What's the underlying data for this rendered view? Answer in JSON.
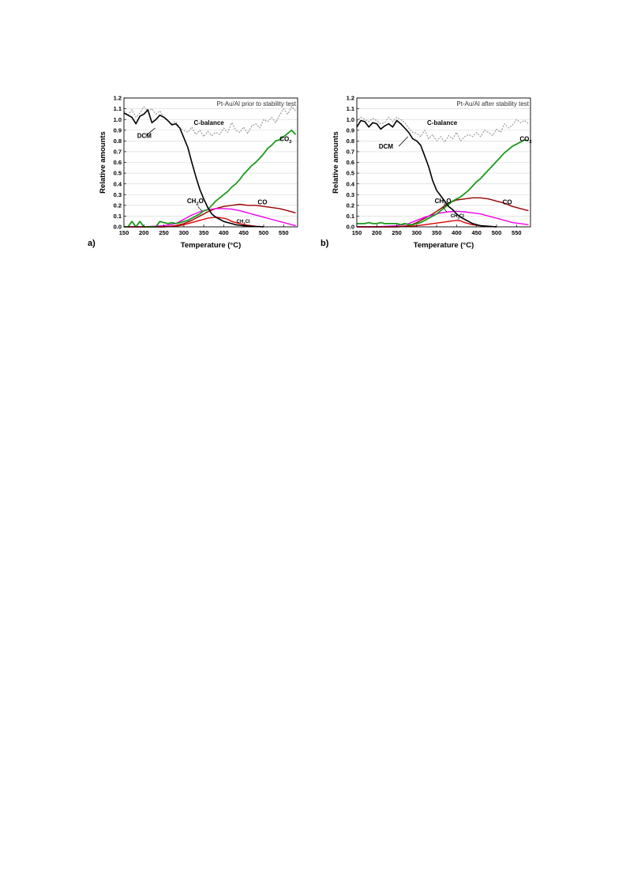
{
  "panels": [
    {
      "letter": "a)",
      "title": "Pt-Au/Al prior to stability test",
      "xlabel": "Temperature (°C)",
      "ylabel": "Relative amounts",
      "series_labels": {
        "dcm": "DCM",
        "cbalance": "C-balance",
        "co2": "CO2",
        "co": "CO",
        "ch2o": "CH2O",
        "ch3cl": "CH3Cl"
      }
    },
    {
      "letter": "b)",
      "title": "Pt-Au/Al after stability test",
      "xlabel": "Temperature (°C)",
      "ylabel": "Relative amounts",
      "series_labels": {
        "dcm": "DCM",
        "cbalance": "C-balance",
        "co2": "CO2",
        "co": "CO",
        "ch2o": "CH2O",
        "ch3cl": "CH3Cl"
      }
    }
  ],
  "colors": {
    "dcm": "#000000",
    "cbalance": "#9a9a9a",
    "co2": "#1a9a1a",
    "co": "#9a0000",
    "ch2o": "#ee00ee",
    "ch3cl": "#dd0000"
  },
  "chart_data": [
    {
      "type": "line",
      "title": "Pt-Au/Al prior to stability test",
      "xlabel": "Temperature (°C)",
      "ylabel": "Relative amounts",
      "xlim": [
        150,
        585
      ],
      "ylim": [
        0,
        1.2
      ],
      "xticks": [
        150,
        200,
        250,
        300,
        350,
        400,
        450,
        500,
        550
      ],
      "yticks": [
        0.0,
        0.1,
        0.2,
        0.3,
        0.4,
        0.5,
        0.6,
        0.7,
        0.8,
        0.9,
        1.0,
        1.1,
        1.2
      ],
      "grid": true,
      "series": [
        {
          "name": "DCM",
          "key": "dcm",
          "x": [
            150,
            160,
            170,
            180,
            190,
            200,
            210,
            220,
            230,
            240,
            250,
            260,
            270,
            280,
            290,
            300,
            310,
            320,
            330,
            340,
            350,
            360,
            370,
            380,
            390,
            400,
            410,
            420,
            430,
            440,
            450,
            460,
            470,
            480,
            490,
            500
          ],
          "y": [
            1.06,
            1.04,
            1.02,
            0.96,
            1.03,
            1.05,
            1.09,
            0.97,
            1.0,
            1.04,
            1.02,
            0.99,
            0.95,
            0.96,
            0.92,
            0.83,
            0.74,
            0.6,
            0.47,
            0.35,
            0.26,
            0.18,
            0.12,
            0.09,
            0.07,
            0.05,
            0.04,
            0.03,
            0.02,
            0.015,
            0.01,
            0.008,
            0.005,
            0.003,
            0.002,
            0.0
          ]
        },
        {
          "name": "C-balance",
          "key": "cbalance",
          "x": [
            150,
            160,
            170,
            180,
            190,
            200,
            210,
            220,
            230,
            240,
            250,
            260,
            270,
            280,
            290,
            300,
            310,
            320,
            330,
            340,
            350,
            360,
            370,
            380,
            390,
            400,
            410,
            420,
            430,
            440,
            450,
            460,
            470,
            480,
            490,
            500,
            510,
            520,
            530,
            540,
            550,
            560,
            570,
            580
          ],
          "y": [
            1.08,
            1.04,
            1.09,
            1.02,
            1.06,
            1.12,
            1.08,
            1.1,
            1.05,
            1.08,
            1.02,
            0.99,
            0.96,
            0.98,
            0.92,
            0.9,
            0.88,
            0.93,
            0.86,
            0.9,
            0.84,
            0.89,
            0.85,
            0.88,
            0.86,
            0.92,
            0.88,
            0.97,
            0.9,
            0.88,
            0.93,
            0.87,
            0.94,
            0.96,
            0.92,
            1.0,
            0.98,
            1.02,
            0.97,
            1.04,
            1.1,
            1.05,
            1.12,
            1.08
          ]
        },
        {
          "name": "CO2",
          "key": "co2",
          "x": [
            150,
            160,
            170,
            180,
            190,
            200,
            210,
            220,
            230,
            240,
            250,
            260,
            270,
            280,
            290,
            300,
            310,
            320,
            330,
            340,
            350,
            360,
            370,
            380,
            390,
            400,
            410,
            420,
            430,
            440,
            450,
            460,
            470,
            480,
            490,
            500,
            510,
            520,
            530,
            540,
            550,
            560,
            570,
            580
          ],
          "y": [
            0.0,
            0.0,
            0.05,
            0.0,
            0.05,
            0.0,
            0.0,
            0.0,
            0.0,
            0.05,
            0.04,
            0.03,
            0.04,
            0.03,
            0.04,
            0.05,
            0.06,
            0.08,
            0.1,
            0.12,
            0.15,
            0.16,
            0.2,
            0.24,
            0.27,
            0.3,
            0.33,
            0.37,
            0.4,
            0.44,
            0.49,
            0.53,
            0.57,
            0.6,
            0.64,
            0.68,
            0.73,
            0.76,
            0.8,
            0.81,
            0.84,
            0.87,
            0.9,
            0.86
          ]
        },
        {
          "name": "CO",
          "key": "co",
          "x": [
            150,
            200,
            250,
            280,
            300,
            320,
            340,
            360,
            380,
            400,
            420,
            440,
            460,
            480,
            500,
            520,
            540,
            560,
            580
          ],
          "y": [
            0.0,
            0.0,
            0.0,
            0.01,
            0.03,
            0.06,
            0.1,
            0.14,
            0.17,
            0.19,
            0.2,
            0.21,
            0.2,
            0.2,
            0.19,
            0.18,
            0.17,
            0.15,
            0.13
          ]
        },
        {
          "name": "CH2O",
          "key": "ch2o",
          "x": [
            150,
            200,
            250,
            280,
            300,
            320,
            340,
            360,
            380,
            400,
            420,
            440,
            460,
            480,
            500,
            520,
            540,
            560,
            580
          ],
          "y": [
            0.0,
            0.0,
            0.01,
            0.03,
            0.07,
            0.11,
            0.14,
            0.16,
            0.17,
            0.17,
            0.165,
            0.15,
            0.13,
            0.11,
            0.09,
            0.07,
            0.05,
            0.03,
            0.01
          ]
        },
        {
          "name": "CH3Cl",
          "key": "ch3cl",
          "x": [
            150,
            200,
            250,
            280,
            300,
            320,
            340,
            360,
            380,
            400,
            410,
            420,
            440,
            460,
            480,
            500
          ],
          "y": [
            0.0,
            0.0,
            0.0,
            0.005,
            0.02,
            0.04,
            0.06,
            0.08,
            0.09,
            0.08,
            0.07,
            0.05,
            0.03,
            0.015,
            0.005,
            0.0
          ]
        }
      ]
    },
    {
      "type": "line",
      "title": "Pt-Au/Al after stability test",
      "xlabel": "Temperature (°C)",
      "ylabel": "Relative amounts",
      "xlim": [
        150,
        585
      ],
      "ylim": [
        0,
        1.2
      ],
      "xticks": [
        150,
        200,
        250,
        300,
        350,
        400,
        450,
        500,
        550
      ],
      "yticks": [
        0.0,
        0.1,
        0.2,
        0.3,
        0.4,
        0.5,
        0.6,
        0.7,
        0.8,
        0.9,
        1.0,
        1.1,
        1.2
      ],
      "grid": true,
      "series": [
        {
          "name": "DCM",
          "key": "dcm",
          "x": [
            150,
            160,
            170,
            180,
            190,
            200,
            210,
            220,
            230,
            240,
            250,
            260,
            270,
            280,
            290,
            300,
            310,
            320,
            330,
            340,
            350,
            360,
            370,
            380,
            390,
            400,
            410,
            420,
            430,
            440,
            450,
            460,
            470,
            480,
            490,
            500
          ],
          "y": [
            0.93,
            0.99,
            0.98,
            0.93,
            0.97,
            0.96,
            0.91,
            0.94,
            0.96,
            0.93,
            0.99,
            0.96,
            0.92,
            0.88,
            0.82,
            0.8,
            0.76,
            0.66,
            0.56,
            0.43,
            0.34,
            0.29,
            0.24,
            0.19,
            0.16,
            0.12,
            0.09,
            0.07,
            0.05,
            0.03,
            0.02,
            0.01,
            0.008,
            0.005,
            0.002,
            0.0
          ]
        },
        {
          "name": "C-balance",
          "key": "cbalance",
          "x": [
            150,
            160,
            170,
            180,
            190,
            200,
            210,
            220,
            230,
            240,
            250,
            260,
            270,
            280,
            290,
            300,
            310,
            320,
            330,
            340,
            350,
            360,
            370,
            380,
            390,
            400,
            410,
            420,
            430,
            440,
            450,
            460,
            470,
            480,
            490,
            500,
            510,
            520,
            530,
            540,
            550,
            560,
            570,
            580
          ],
          "y": [
            0.98,
            1.02,
            1.0,
            0.98,
            1.01,
            0.99,
            0.96,
            0.97,
            1.02,
            0.98,
            1.02,
            1.0,
            0.97,
            0.92,
            0.88,
            0.87,
            0.84,
            0.9,
            0.82,
            0.86,
            0.8,
            0.84,
            0.79,
            0.85,
            0.82,
            0.88,
            0.8,
            0.84,
            0.86,
            0.84,
            0.88,
            0.84,
            0.9,
            0.88,
            0.85,
            0.91,
            0.88,
            0.96,
            0.92,
            0.95,
            1.0,
            0.97,
            0.99,
            0.96
          ]
        },
        {
          "name": "CO2",
          "key": "co2",
          "x": [
            150,
            160,
            170,
            180,
            190,
            200,
            210,
            220,
            230,
            240,
            250,
            260,
            270,
            280,
            290,
            300,
            310,
            320,
            330,
            340,
            350,
            360,
            370,
            380,
            390,
            400,
            410,
            420,
            430,
            440,
            450,
            460,
            470,
            480,
            490,
            500,
            510,
            520,
            530,
            540,
            550,
            560,
            570,
            580
          ],
          "y": [
            0.03,
            0.03,
            0.03,
            0.04,
            0.03,
            0.03,
            0.04,
            0.03,
            0.03,
            0.03,
            0.03,
            0.02,
            0.03,
            0.02,
            0.02,
            0.03,
            0.04,
            0.06,
            0.08,
            0.1,
            0.12,
            0.15,
            0.18,
            0.21,
            0.24,
            0.26,
            0.28,
            0.31,
            0.34,
            0.38,
            0.42,
            0.45,
            0.49,
            0.53,
            0.57,
            0.61,
            0.65,
            0.69,
            0.72,
            0.75,
            0.77,
            0.79,
            0.81,
            0.8
          ]
        },
        {
          "name": "CO",
          "key": "co",
          "x": [
            150,
            200,
            250,
            280,
            300,
            320,
            340,
            360,
            380,
            400,
            420,
            440,
            460,
            480,
            500,
            520,
            540,
            560,
            580
          ],
          "y": [
            0.0,
            0.0,
            0.0,
            0.01,
            0.04,
            0.08,
            0.12,
            0.17,
            0.22,
            0.25,
            0.26,
            0.27,
            0.27,
            0.26,
            0.24,
            0.22,
            0.19,
            0.17,
            0.15
          ]
        },
        {
          "name": "CH2O",
          "key": "ch2o",
          "x": [
            150,
            200,
            250,
            280,
            300,
            320,
            340,
            360,
            380,
            400,
            420,
            440,
            460,
            480,
            500,
            520,
            540,
            560,
            580
          ],
          "y": [
            0.0,
            0.0,
            0.01,
            0.03,
            0.06,
            0.09,
            0.11,
            0.13,
            0.14,
            0.145,
            0.14,
            0.13,
            0.12,
            0.1,
            0.08,
            0.06,
            0.04,
            0.03,
            0.02
          ]
        },
        {
          "name": "CH3Cl",
          "key": "ch3cl",
          "x": [
            150,
            200,
            250,
            280,
            300,
            320,
            340,
            360,
            380,
            400,
            410,
            420,
            440,
            460,
            480,
            500
          ],
          "y": [
            0.0,
            0.0,
            0.0,
            0.005,
            0.01,
            0.02,
            0.03,
            0.04,
            0.05,
            0.06,
            0.055,
            0.04,
            0.02,
            0.01,
            0.005,
            0.0
          ]
        }
      ]
    }
  ]
}
